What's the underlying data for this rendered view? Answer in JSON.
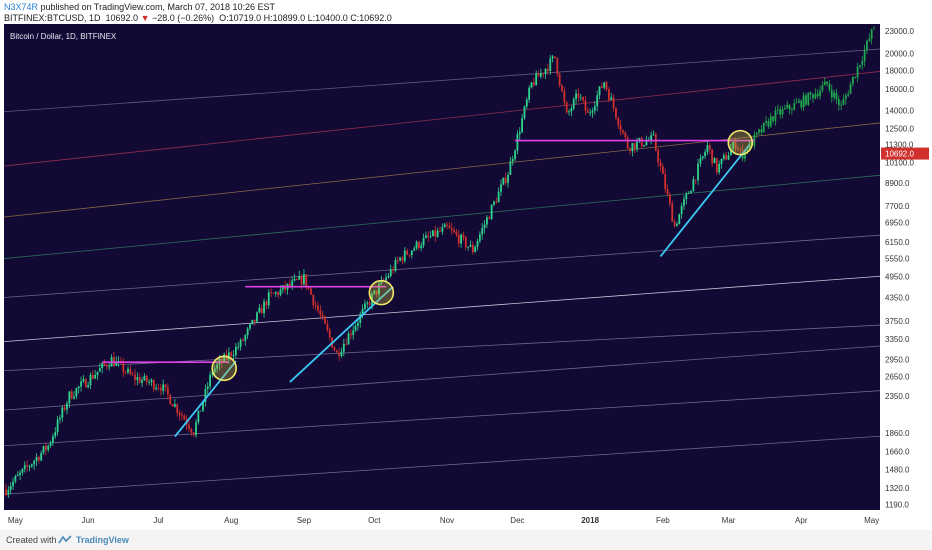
{
  "header": {
    "author": "N3X74R",
    "published_text": "published on TradingView.com, March 07, 2018 10:26 EST",
    "symbol": "BITFINEX:BTCUSD, 1D",
    "last": "10692.0",
    "change": "−28.0 (−0.26%)",
    "ohlc": "O:10719.0 H:10899.0 L:10400.0 C:10692.0"
  },
  "footer": {
    "created_with": "Created with",
    "brand": "TradingView"
  },
  "chart_data": {
    "type": "candlestick",
    "title": "Bitcoin / Dollar, 1D, BITFINEX",
    "price_axis_labels": [
      "23000.0",
      "20000.0",
      "18000.0",
      "16000.0",
      "14000.0",
      "12500.0",
      "11300.0",
      "10100.0",
      "8900.0",
      "7700.0",
      "6950.0",
      "6150.0",
      "5550.0",
      "4950.0",
      "4350.0",
      "3750.0",
      "3350.0",
      "2950.0",
      "2650.0",
      "2350.0",
      "1860.0",
      "1660.0",
      "1480.0",
      "1320.0",
      "1190.0"
    ],
    "time_axis_labels": [
      "May",
      "Jun",
      "Jul",
      "Aug",
      "Sep",
      "Oct",
      "Nov",
      "Dec",
      "2018",
      "Feb",
      "Mar",
      "Apr",
      "May"
    ],
    "last_price_label": "10692.0",
    "scale": "log",
    "grid": false,
    "colors": {
      "background": "#130935",
      "up": "#2fd58d",
      "down": "#d0312d",
      "projection": "#1fa84e",
      "resistance": "#e040e8",
      "trendline": "#3cc8f5",
      "circle": "#f1e86a"
    },
    "anchors": [
      {
        "date": "2017-04-27",
        "price": 1310
      },
      {
        "date": "2017-05-15",
        "price": 1720
      },
      {
        "date": "2017-05-24",
        "price": 2350
      },
      {
        "date": "2017-06-11",
        "price": 2950
      },
      {
        "date": "2017-06-20",
        "price": 2640
      },
      {
        "date": "2017-07-02",
        "price": 2500
      },
      {
        "date": "2017-07-16",
        "price": 1880
      },
      {
        "date": "2017-07-24",
        "price": 2750
      },
      {
        "date": "2017-08-05",
        "price": 3250
      },
      {
        "date": "2017-08-17",
        "price": 4350
      },
      {
        "date": "2017-09-01",
        "price": 4900
      },
      {
        "date": "2017-09-15",
        "price": 3050
      },
      {
        "date": "2017-09-30",
        "price": 4350
      },
      {
        "date": "2017-10-12",
        "price": 5550
      },
      {
        "date": "2017-10-21",
        "price": 6150
      },
      {
        "date": "2017-11-01",
        "price": 6700
      },
      {
        "date": "2017-11-12",
        "price": 5850
      },
      {
        "date": "2017-11-27",
        "price": 9500
      },
      {
        "date": "2017-12-07",
        "price": 16500
      },
      {
        "date": "2017-12-17",
        "price": 19500
      },
      {
        "date": "2017-12-22",
        "price": 13500
      },
      {
        "date": "2017-12-27",
        "price": 15500
      },
      {
        "date": "2017-12-31",
        "price": 13600
      },
      {
        "date": "2018-01-07",
        "price": 16800
      },
      {
        "date": "2018-01-17",
        "price": 11200
      },
      {
        "date": "2018-01-28",
        "price": 11700
      },
      {
        "date": "2018-02-06",
        "price": 6800
      },
      {
        "date": "2018-02-20",
        "price": 11200
      },
      {
        "date": "2018-02-24",
        "price": 9700
      },
      {
        "date": "2018-03-04",
        "price": 11400
      },
      {
        "date": "2018-03-07",
        "price": 10692
      }
    ],
    "projection_anchors": [
      {
        "date": "2018-03-07",
        "price": 10692
      },
      {
        "date": "2018-03-20",
        "price": 13500
      },
      {
        "date": "2018-04-03",
        "price": 15000
      },
      {
        "date": "2018-04-12",
        "price": 16500
      },
      {
        "date": "2018-04-18",
        "price": 14300
      },
      {
        "date": "2018-04-26",
        "price": 19000
      },
      {
        "date": "2018-05-02",
        "price": 23500
      }
    ],
    "resistance_lines": [
      {
        "from": "2017-06-07",
        "to": "2017-07-31",
        "price": 2900
      },
      {
        "from": "2017-08-07",
        "to": "2017-10-06",
        "price": 4650
      },
      {
        "from": "2017-11-30",
        "to": "2018-03-12",
        "price": 11600
      }
    ],
    "trendlines": [
      {
        "from": {
          "date": "2017-07-08",
          "price": 1820
        },
        "to": {
          "date": "2017-08-03",
          "price": 2920
        }
      },
      {
        "from": {
          "date": "2017-08-26",
          "price": 2560
        },
        "to": {
          "date": "2017-10-09",
          "price": 4650
        }
      },
      {
        "from": {
          "date": "2018-01-31",
          "price": 5620
        },
        "to": {
          "date": "2018-03-10",
          "price": 11300
        }
      }
    ],
    "circles": [
      {
        "date": "2017-07-29",
        "price": 2790
      },
      {
        "date": "2017-10-04",
        "price": 4480
      },
      {
        "date": "2018-03-06",
        "price": 11450
      }
    ],
    "channel_lines": [
      {
        "start": {
          "date": "2017-04-27",
          "price": 13900
        },
        "end": {
          "date": "2018-05-02",
          "price": 20500
        },
        "color": "#5c5a82"
      },
      {
        "start": {
          "date": "2017-04-27",
          "price": 9900
        },
        "end": {
          "date": "2018-05-02",
          "price": 17800
        },
        "color": "#8e2f4d"
      },
      {
        "start": {
          "date": "2017-04-27",
          "price": 7200
        },
        "end": {
          "date": "2018-05-02",
          "price": 12900
        },
        "color": "#8a6a45"
      },
      {
        "start": {
          "date": "2017-04-27",
          "price": 5550
        },
        "end": {
          "date": "2018-05-02",
          "price": 9300
        },
        "color": "#2c6f5a"
      },
      {
        "start": {
          "date": "2017-04-27",
          "price": 4350
        },
        "end": {
          "date": "2018-05-02",
          "price": 6400
        },
        "color": "#6a688e"
      },
      {
        "start": {
          "date": "2017-04-27",
          "price": 3300
        },
        "end": {
          "date": "2018-05-02",
          "price": 4950
        },
        "color": "#c8c8dc"
      },
      {
        "start": {
          "date": "2017-04-27",
          "price": 2750
        },
        "end": {
          "date": "2018-05-02",
          "price": 3650
        },
        "color": "#6a688e"
      },
      {
        "start": {
          "date": "2017-04-27",
          "price": 2150
        },
        "end": {
          "date": "2018-05-02",
          "price": 3200
        },
        "color": "#6a688e"
      },
      {
        "start": {
          "date": "2017-04-27",
          "price": 1720
        },
        "end": {
          "date": "2018-05-02",
          "price": 2420
        },
        "color": "#6a688e"
      },
      {
        "start": {
          "date": "2017-04-27",
          "price": 1270
        },
        "end": {
          "date": "2018-05-02",
          "price": 1820
        },
        "color": "#6a688e"
      }
    ]
  }
}
